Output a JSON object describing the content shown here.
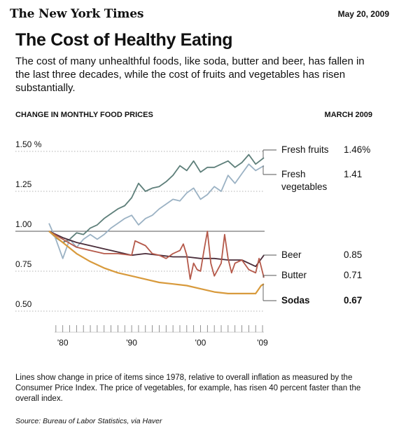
{
  "header": {
    "masthead": "The New York Times",
    "date": "May 20, 2009",
    "title": "The Cost of Healthy Eating",
    "intro": "The cost of many unhealthful foods, like soda, butter and beer, has fallen in the last three decades, while the cost of fruits and vegetables has risen substantially.",
    "chart_label": "CHANGE IN MONTHLY FOOD PRICES",
    "chart_label_right": "MARCH 2009"
  },
  "note": "Lines show change in price of items since 1978, relative to overall inflation as measured by the Consumer Price Index. The price of vegetables, for example, has risen 40 percent faster than the overall index.",
  "source": "Source: Bureau of Labor Statistics, via Haver",
  "chart_data": {
    "type": "line",
    "title": "The Cost of Healthy Eating",
    "ylim": [
      0.5,
      1.5
    ],
    "xlim": [
      1978,
      2009.3
    ],
    "yticks": [
      {
        "value": 1.5,
        "label": "1.50 %"
      },
      {
        "value": 1.25,
        "label": "1.25"
      },
      {
        "value": 1.0,
        "label": "1.00"
      },
      {
        "value": 0.75,
        "label": "0.75"
      },
      {
        "value": 0.5,
        "label": "0.50"
      }
    ],
    "xticks": [
      {
        "value": 1980,
        "label": "'80"
      },
      {
        "value": 1990,
        "label": "'90"
      },
      {
        "value": 2000,
        "label": "'00"
      },
      {
        "value": 2009,
        "label": "'09"
      }
    ],
    "series": [
      {
        "name": "Fresh fruits",
        "end_label": "1.46%",
        "color": "#5e7f7a",
        "x": [
          1978,
          1979,
          1980,
          1981,
          1982,
          1983,
          1984,
          1985,
          1986,
          1987,
          1988,
          1989,
          1990,
          1991,
          1992,
          1993,
          1994,
          1995,
          1996,
          1997,
          1998,
          1999,
          2000,
          2001,
          2002,
          2003,
          2004,
          2005,
          2006,
          2007,
          2008,
          2009.2
        ],
        "y": [
          1.0,
          0.96,
          0.93,
          0.95,
          0.99,
          0.98,
          1.02,
          1.04,
          1.08,
          1.11,
          1.14,
          1.16,
          1.21,
          1.3,
          1.25,
          1.27,
          1.28,
          1.31,
          1.35,
          1.41,
          1.38,
          1.44,
          1.37,
          1.4,
          1.4,
          1.42,
          1.44,
          1.4,
          1.43,
          1.48,
          1.42,
          1.46
        ]
      },
      {
        "name": "Fresh vegetables",
        "end_label": "1.41",
        "color": "#9bb2c4",
        "x": [
          1978,
          1979,
          1980,
          1981,
          1982,
          1983,
          1984,
          1985,
          1986,
          1987,
          1988,
          1989,
          1990,
          1991,
          1992,
          1993,
          1994,
          1995,
          1996,
          1997,
          1998,
          1999,
          2000,
          2001,
          2002,
          2003,
          2004,
          2005,
          2006,
          2007,
          2008,
          2009.2
        ],
        "y": [
          1.05,
          0.95,
          0.83,
          0.95,
          0.9,
          0.95,
          0.98,
          0.95,
          0.98,
          1.02,
          1.05,
          1.08,
          1.1,
          1.04,
          1.08,
          1.1,
          1.14,
          1.17,
          1.2,
          1.19,
          1.24,
          1.27,
          1.2,
          1.23,
          1.28,
          1.25,
          1.35,
          1.3,
          1.36,
          1.42,
          1.38,
          1.41
        ]
      },
      {
        "name": "Beer",
        "end_label": "0.85",
        "color": "#4a2d3a",
        "x": [
          1978,
          1980,
          1982,
          1984,
          1986,
          1988,
          1990,
          1992,
          1994,
          1996,
          1998,
          2000,
          2002,
          2004,
          2006,
          2008,
          2009.2
        ],
        "y": [
          1.0,
          0.96,
          0.93,
          0.91,
          0.89,
          0.87,
          0.85,
          0.86,
          0.85,
          0.84,
          0.84,
          0.83,
          0.83,
          0.82,
          0.82,
          0.78,
          0.85
        ]
      },
      {
        "name": "Butter",
        "end_label": "0.71",
        "color": "#b5594a",
        "x": [
          1978,
          1980,
          1982,
          1984,
          1986,
          1988,
          1990,
          1990.5,
          1991,
          1992,
          1993,
          1994,
          1995,
          1996,
          1997,
          1997.5,
          1998,
          1998.5,
          1999,
          1999.5,
          2000,
          2000.5,
          2001,
          2001.5,
          2002,
          2003,
          2003.5,
          2004,
          2004.5,
          2005,
          2006,
          2007,
          2008,
          2008.5,
          2009.2
        ],
        "y": [
          1.0,
          0.95,
          0.9,
          0.88,
          0.86,
          0.86,
          0.85,
          0.94,
          0.93,
          0.91,
          0.86,
          0.85,
          0.83,
          0.86,
          0.88,
          0.92,
          0.85,
          0.7,
          0.8,
          0.76,
          0.75,
          0.88,
          1.0,
          0.8,
          0.72,
          0.8,
          0.98,
          0.83,
          0.74,
          0.8,
          0.82,
          0.76,
          0.74,
          0.83,
          0.71
        ]
      },
      {
        "name": "Sodas",
        "end_label": "0.67",
        "color": "#d89a3c",
        "bold": true,
        "x": [
          1978,
          1980,
          1982,
          1984,
          1986,
          1988,
          1990,
          1992,
          1994,
          1996,
          1998,
          2000,
          2002,
          2004,
          2006,
          2008,
          2008.8,
          2009.2
        ],
        "y": [
          1.0,
          0.93,
          0.86,
          0.81,
          0.77,
          0.74,
          0.72,
          0.7,
          0.68,
          0.67,
          0.66,
          0.64,
          0.62,
          0.61,
          0.61,
          0.61,
          0.66,
          0.67
        ]
      }
    ]
  }
}
